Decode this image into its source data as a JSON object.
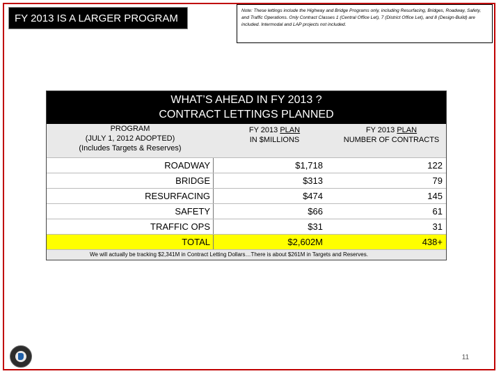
{
  "slide": {
    "title": "FY 2013 IS A LARGER PROGRAM",
    "note": "Note: These lettings include the Highway and Bridge Programs only, including Resurfacing, Bridges, Roadway, Safety, and Traffic Operations. Only Contract Classes 1 (Central Office Let), 7 (District Office Let), and 8 (Design-Build) are included. Intermodal and LAP projects not included.",
    "page_number": "11"
  },
  "table": {
    "heading_line1": "WHAT’S AHEAD IN FY 2013 ?",
    "heading_line2": "CONTRACT LETTINGS PLANNED",
    "col1": {
      "line1": "PROGRAM",
      "line2": "(JULY 1, 2012 ADOPTED)",
      "line3": "(Includes Targets & Reserves)"
    },
    "col2": {
      "prefix": "FY 2013 ",
      "underlined": "PLAN",
      "line2": "IN $MILLIONS"
    },
    "col3": {
      "prefix": "FY 2013 ",
      "underlined": "PLAN",
      "line2": "NUMBER OF CONTRACTS"
    },
    "rows": [
      {
        "program": "ROADWAY",
        "plan": "$1,718",
        "contracts": "122"
      },
      {
        "program": "BRIDGE",
        "plan": "$313",
        "contracts": "79"
      },
      {
        "program": "RESURFACING",
        "plan": "$474",
        "contracts": "145"
      },
      {
        "program": "SAFETY",
        "plan": "$66",
        "contracts": "61"
      },
      {
        "program": "TRAFFIC OPS",
        "plan": "$31",
        "contracts": "31"
      }
    ],
    "total": {
      "program": "TOTAL",
      "plan": "$2,602M",
      "contracts": "438+"
    },
    "footer_note": "We will actually be tracking $2,341M in Contract Letting Dollars…There is about $261M in Targets and Reserves."
  },
  "colors": {
    "frame": "#c00000",
    "heading_bg": "#000000",
    "total_highlight": "#ffff00"
  },
  "icons": {
    "logo": "agency-seal-icon"
  }
}
